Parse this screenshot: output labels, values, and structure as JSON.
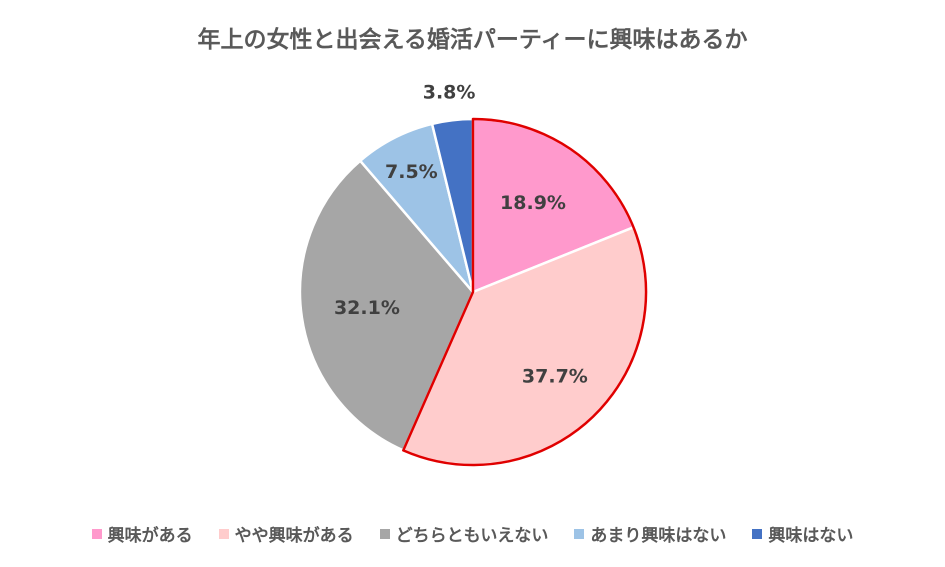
{
  "chart_data": {
    "type": "pie",
    "title": "年上の女性と出会える婚活パーティーに興味はあるか",
    "categories": [
      "興味がある",
      "やや興味がある",
      "どちらともいえない",
      "あまり興味はない",
      "興味はない"
    ],
    "values": [
      18.9,
      37.7,
      32.1,
      7.5,
      3.8
    ],
    "data_labels": [
      "18.9%",
      "37.7%",
      "32.1%",
      "7.5%",
      "3.8%"
    ],
    "colors": [
      "#FF99CC",
      "#FFCCCC",
      "#A6A6A6",
      "#9DC3E6",
      "#4472C4"
    ],
    "highlight_color": "#E00000",
    "highlighted_slices": [
      0,
      1
    ],
    "legend_position": "bottom"
  }
}
